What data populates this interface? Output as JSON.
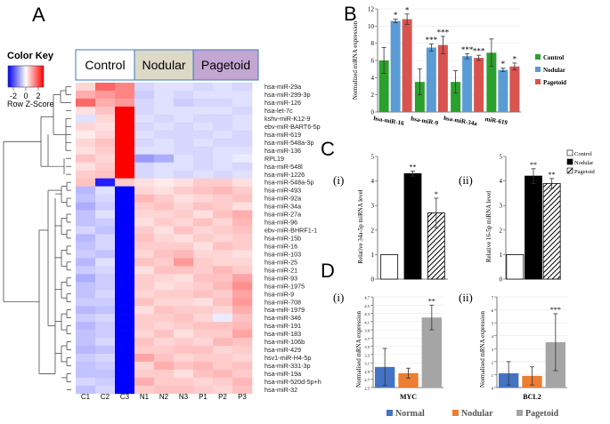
{
  "panels": {
    "A": "A",
    "B": "B",
    "C": "C",
    "D": "D",
    "ci": "(i)",
    "cii": "(ii)",
    "di": "(i)",
    "dii": "(ii)"
  },
  "heatmap": {
    "color_key_title": "Color Key",
    "color_key_label": "Row Z-Score",
    "color_key_ticks": [
      "-2",
      "0",
      "2"
    ],
    "group_labels": [
      "Control",
      "Nodular",
      "Pagetoid"
    ],
    "group_colors": [
      "#ffffff",
      "#dcd9c6",
      "#c3a6d2"
    ],
    "columns": [
      "C1",
      "C2",
      "C3",
      "N1",
      "N2",
      "N3",
      "P1",
      "P2",
      "P3"
    ],
    "rows": [
      "hsa-miR-29a",
      "hsa-miR-299-3p",
      "hsa-miR-126",
      "hsa-let-7c",
      "kshv-miR-K12-9",
      "ebv-miR-BART6-5p",
      "hsa-miR-619",
      "hsa-miR-548a-3p",
      "hsa-miR-136",
      "RPL19",
      "hsa-miR-548l",
      "hsa-miR-1226",
      "hsa-miR-548a-5p",
      "hsa-miR-493",
      "hsa-miR-92a",
      "hsa-miR-34a",
      "hsa-miR-27a",
      "hsa-miR-96",
      "ebv-miR-BHRF1-1",
      "hsa-miR-15b",
      "hsa-miR-16",
      "hsa-miR-103",
      "hsa-miR-25",
      "hsa-miR-21",
      "hsa-miR-93",
      "hsa-miR-1975",
      "hsa-miR-9",
      "hsa-miR-708",
      "hsa-miR-1979",
      "hsa-miR-346",
      "hsa-miR-191",
      "hsa-miR-183",
      "hsa-miR-106b",
      "hsa-miR-429",
      "hsv1-miR-H4-5p",
      "hsa-miR-331-3p",
      "hsa-miR-19a",
      "hsa-miR-520d-5p+h",
      "hsa-miR-32"
    ],
    "values": [
      [
        0.4,
        1.5,
        1.2,
        -0.4,
        -0.3,
        -0.3,
        -0.4,
        -0.3,
        -0.4
      ],
      [
        0.8,
        1.0,
        1.2,
        -0.5,
        -0.3,
        -0.4,
        -0.3,
        -0.3,
        -0.3
      ],
      [
        1.5,
        0.8,
        1.0,
        -0.4,
        -0.3,
        -0.5,
        -0.4,
        -0.4,
        -0.3
      ],
      [
        0.3,
        0.6,
        2.5,
        -0.4,
        -0.3,
        -0.3,
        -0.3,
        -0.3,
        -0.4
      ],
      [
        -0.3,
        0.4,
        2.5,
        -0.3,
        -0.4,
        -0.3,
        -0.4,
        -0.4,
        -0.3
      ],
      [
        0.4,
        0.3,
        2.5,
        -0.4,
        -0.3,
        -0.4,
        -0.3,
        -0.4,
        -0.3
      ],
      [
        0.2,
        0.4,
        2.5,
        -0.3,
        -0.4,
        -0.4,
        -0.4,
        -0.3,
        -0.4
      ],
      [
        0.4,
        0.6,
        2.5,
        -0.4,
        -0.3,
        -0.4,
        -0.3,
        -0.4,
        -0.4
      ],
      [
        0.3,
        0.5,
        2.5,
        -0.3,
        -0.3,
        -0.4,
        -0.4,
        -0.3,
        -0.3
      ],
      [
        0.6,
        0.4,
        2.5,
        -1.0,
        -0.8,
        -0.3,
        -0.4,
        -0.3,
        -0.2
      ],
      [
        0.3,
        0.5,
        2.5,
        -0.4,
        -0.3,
        -0.3,
        -0.4,
        -0.3,
        -0.4
      ],
      [
        0.5,
        0.6,
        2.5,
        -0.4,
        -0.3,
        -0.4,
        -0.3,
        -0.4,
        -0.3
      ],
      [
        0.6,
        -2.2,
        0.5,
        0.3,
        0.2,
        0.3,
        0.5,
        0.5,
        0.3
      ],
      [
        -0.7,
        -0.3,
        -2.5,
        0.4,
        0.3,
        0.5,
        0.6,
        0.7,
        0.5
      ],
      [
        -0.6,
        -0.4,
        -2.5,
        0.7,
        0.5,
        0.3,
        0.4,
        0.5,
        0.6
      ],
      [
        -0.8,
        -0.5,
        -2.5,
        0.5,
        0.6,
        0.4,
        0.6,
        0.5,
        0.3
      ],
      [
        -0.6,
        -0.3,
        -2.5,
        0.4,
        0.4,
        0.5,
        0.3,
        0.6,
        0.8
      ],
      [
        -0.6,
        -0.5,
        -2.5,
        0.3,
        0.5,
        0.4,
        0.6,
        0.4,
        0.7
      ],
      [
        -0.4,
        -0.6,
        -2.5,
        0.5,
        0.3,
        0.6,
        0.4,
        0.5,
        0.6
      ],
      [
        -0.7,
        -0.4,
        -2.5,
        0.6,
        0.4,
        0.3,
        0.5,
        0.4,
        0.5
      ],
      [
        -0.6,
        -0.4,
        -2.5,
        0.5,
        0.5,
        0.5,
        0.3,
        0.6,
        0.5
      ],
      [
        -0.5,
        -0.6,
        -2.5,
        0.4,
        0.6,
        0.7,
        0.4,
        0.4,
        0.3
      ],
      [
        -0.7,
        -0.3,
        -2.5,
        0.6,
        0.5,
        1.0,
        0.5,
        0.4,
        0.4
      ],
      [
        -0.5,
        -0.4,
        -2.5,
        0.3,
        0.6,
        0.6,
        0.5,
        0.7,
        0.5
      ],
      [
        -0.8,
        -0.5,
        -2.5,
        0.5,
        0.4,
        0.3,
        0.6,
        0.6,
        0.9
      ],
      [
        -0.6,
        -0.5,
        -2.5,
        0.5,
        0.3,
        0.4,
        0.5,
        0.7,
        1.1
      ],
      [
        -0.6,
        -0.4,
        -2.5,
        0.4,
        0.5,
        0.5,
        0.6,
        0.5,
        0.9
      ],
      [
        -0.5,
        -0.5,
        -2.5,
        0.6,
        0.4,
        0.4,
        0.3,
        0.6,
        1.0
      ],
      [
        -0.7,
        -0.6,
        -2.5,
        0.3,
        0.6,
        0.5,
        0.5,
        0.4,
        0.8
      ],
      [
        -0.5,
        -0.4,
        -2.5,
        0.5,
        0.5,
        0.6,
        0.4,
        -0.2,
        0.6
      ],
      [
        -0.7,
        -0.5,
        -2.5,
        0.5,
        0.4,
        0.5,
        0.6,
        0.6,
        0.7
      ],
      [
        -0.6,
        -0.5,
        -2.5,
        0.4,
        0.6,
        0.3,
        0.5,
        0.5,
        0.9
      ],
      [
        -0.6,
        -0.4,
        -2.5,
        0.6,
        0.4,
        0.5,
        0.4,
        0.7,
        0.6
      ],
      [
        -0.7,
        -0.6,
        -2.5,
        0.5,
        0.5,
        0.6,
        0.6,
        0.4,
        0.5
      ],
      [
        -0.5,
        -0.4,
        -2.5,
        0.9,
        0.6,
        0.4,
        0.5,
        0.5,
        0.4
      ],
      [
        -0.6,
        -0.5,
        -2.5,
        0.4,
        0.8,
        0.6,
        0.7,
        0.5,
        0.6
      ],
      [
        -0.6,
        -0.6,
        -2.5,
        0.5,
        0.5,
        0.3,
        0.6,
        0.7,
        0.5
      ],
      [
        -0.4,
        -0.5,
        -2.5,
        0.8,
        0.5,
        0.5,
        0.4,
        0.5,
        0.7
      ],
      [
        -0.6,
        -0.4,
        -2.5,
        0.5,
        0.6,
        0.6,
        0.5,
        0.4,
        0.6
      ]
    ]
  },
  "colors": {
    "control": "#2ca02c",
    "nodular": "#5b9bd5",
    "pagetoid": "#d9534f",
    "normal_d": "#4472c4",
    "nodular_d": "#ed7d31",
    "pagetoid_d": "#a5a5a5"
  },
  "chart_data": [
    {
      "id": "B",
      "type": "bar",
      "ylabel": "Normalized miRNA expression",
      "ylim": [
        0,
        12
      ],
      "yticks": [
        "0",
        "2",
        "4",
        "6",
        "8",
        "10",
        "12"
      ],
      "categories": [
        "hsa-miR-16",
        "hsa-miR-9",
        "hsa-miR-34a",
        "miR-619"
      ],
      "series": [
        {
          "name": "Control",
          "values": [
            6.0,
            3.5,
            3.5,
            6.9
          ],
          "errors": [
            1.5,
            1.5,
            1.3,
            1.6
          ],
          "stars": [
            "",
            "",
            "",
            ""
          ]
        },
        {
          "name": "Nodular",
          "values": [
            10.6,
            7.5,
            6.5,
            4.9
          ],
          "errors": [
            0.2,
            0.4,
            0.3,
            0.2
          ],
          "stars": [
            "*",
            "***",
            "***",
            "*"
          ]
        },
        {
          "name": "Pagetoid",
          "values": [
            10.8,
            7.8,
            6.3,
            5.3
          ],
          "errors": [
            0.6,
            1.0,
            0.3,
            0.4
          ],
          "stars": [
            "*",
            "***",
            "***",
            "*"
          ]
        }
      ]
    },
    {
      "id": "Ci",
      "type": "bar",
      "ylabel": "Relative 34a-5p miRNA level",
      "ylim": [
        0,
        5
      ],
      "yticks": [
        "0",
        "1",
        "2",
        "3",
        "4",
        "5"
      ],
      "categories": [
        "Control",
        "Nodular",
        "Pagetoid"
      ],
      "values": [
        1.0,
        4.3,
        2.7
      ],
      "errors": [
        0,
        0.1,
        0.6
      ],
      "stars": [
        "",
        "**",
        "*"
      ]
    },
    {
      "id": "Cii",
      "type": "bar",
      "ylabel": "Relative 16-5p miRNA level",
      "ylim": [
        0,
        5
      ],
      "yticks": [
        "0",
        "1",
        "2",
        "3",
        "4",
        "5"
      ],
      "categories": [
        "Control",
        "Nodular",
        "Pagetoid"
      ],
      "values": [
        1.0,
        4.2,
        3.9
      ],
      "errors": [
        0,
        0.3,
        0.2
      ],
      "stars": [
        "",
        "**",
        "**"
      ],
      "legend": [
        "Control",
        "Nodular",
        "Pagetoid"
      ]
    },
    {
      "id": "Di",
      "type": "bar",
      "xlabel": "MYC",
      "ylabel": "Normalised mRNA expression",
      "ylim": [
        2.5,
        4.7
      ],
      "yticks": [
        "2.5",
        "2.7",
        "2.9",
        "3.1",
        "3.3",
        "3.5",
        "3.7",
        "3.9",
        "4.1",
        "4.3",
        "4.5",
        "4.7"
      ],
      "categories": [
        "Normal",
        "Nodular",
        "Pagetoid"
      ],
      "values": [
        3.0,
        2.85,
        4.2
      ],
      "errors": [
        0.45,
        0.12,
        0.3
      ],
      "stars": [
        "",
        "",
        "**"
      ]
    },
    {
      "id": "Dii",
      "type": "bar",
      "xlabel": "BCL2",
      "ylabel": "Normalised mRNA expression",
      "ylim": [
        0,
        7
      ],
      "yticks": [
        "0",
        "1",
        "2",
        "3",
        "4",
        "5",
        "6",
        "7"
      ],
      "categories": [
        "Normal",
        "Nodular",
        "Pagetoid"
      ],
      "values": [
        1.1,
        0.9,
        3.5
      ],
      "errors": [
        0.9,
        0.7,
        2.2
      ],
      "stars": [
        "",
        "",
        "***"
      ]
    }
  ],
  "legend_d": [
    "Normal",
    "Nodular",
    "Pagetoid"
  ]
}
